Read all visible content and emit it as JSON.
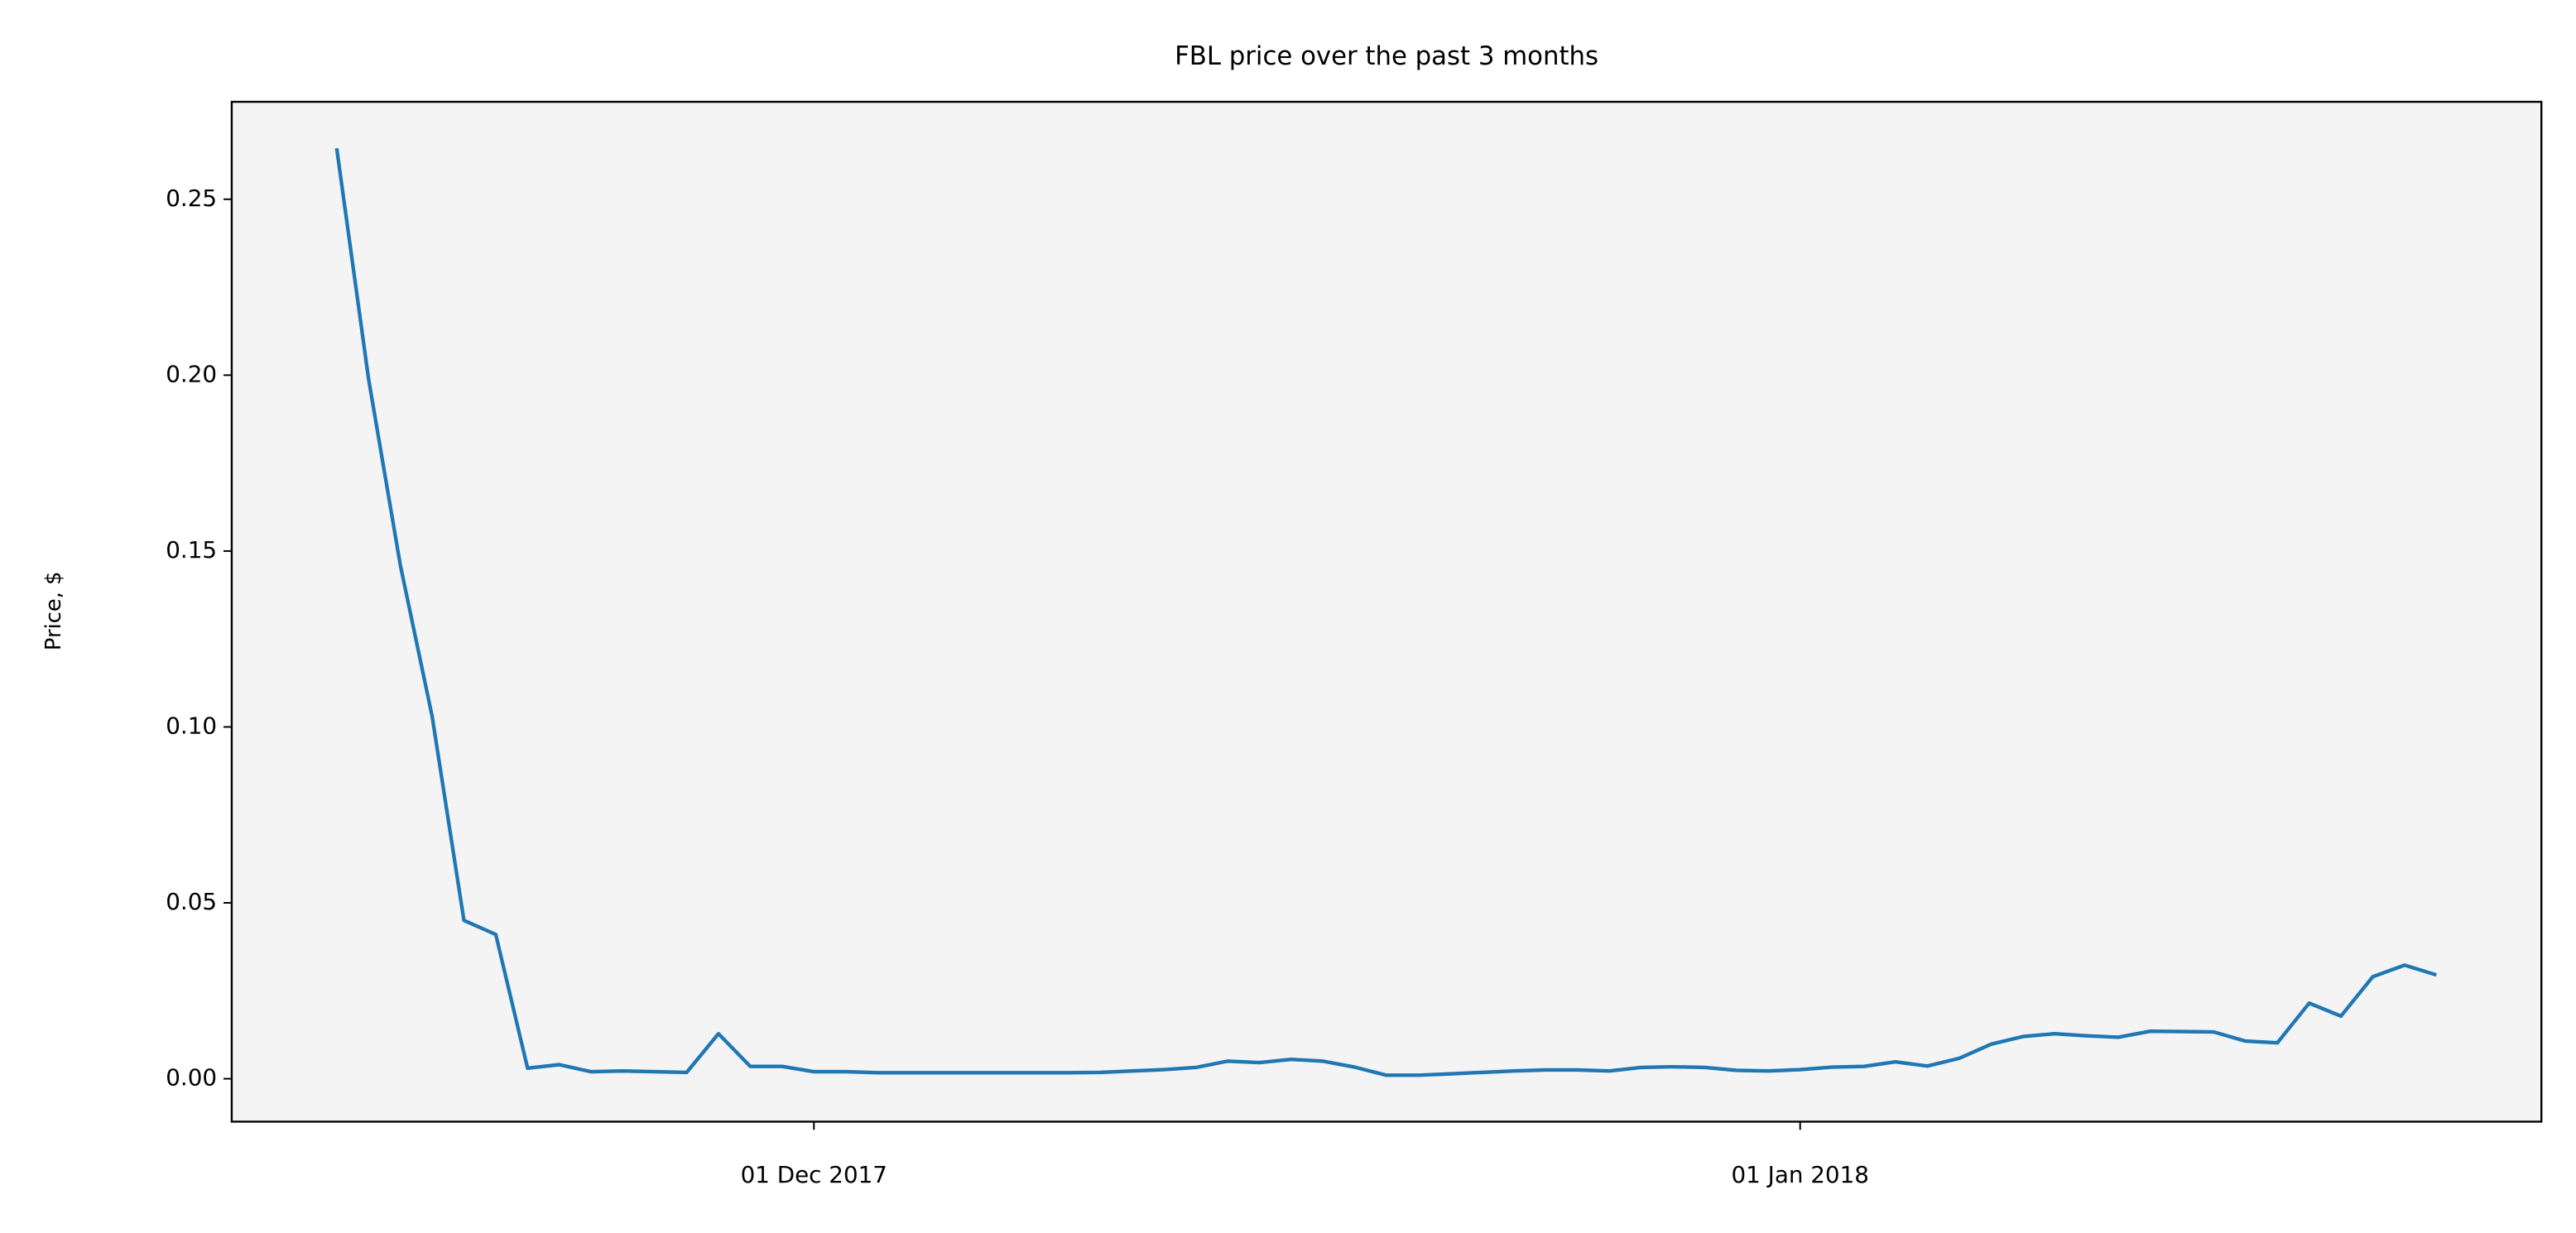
{
  "chart_data": {
    "type": "line",
    "title": "FBL price over the past 3 months",
    "ylabel": "Price, $",
    "x": [
      "2017-11-16",
      "2017-11-17",
      "2017-11-18",
      "2017-11-19",
      "2017-11-20",
      "2017-11-21",
      "2017-11-22",
      "2017-11-23",
      "2017-11-24",
      "2017-11-25",
      "2017-11-26",
      "2017-11-27",
      "2017-11-28",
      "2017-11-29",
      "2017-11-30",
      "2017-12-01",
      "2017-12-02",
      "2017-12-03",
      "2017-12-04",
      "2017-12-05",
      "2017-12-06",
      "2017-12-07",
      "2017-12-08",
      "2017-12-09",
      "2017-12-10",
      "2017-12-11",
      "2017-12-12",
      "2017-12-13",
      "2017-12-14",
      "2017-12-15",
      "2017-12-16",
      "2017-12-17",
      "2017-12-18",
      "2017-12-19",
      "2017-12-20",
      "2017-12-21",
      "2017-12-22",
      "2017-12-23",
      "2017-12-24",
      "2017-12-25",
      "2017-12-26",
      "2017-12-27",
      "2017-12-28",
      "2017-12-29",
      "2017-12-30",
      "2017-12-31",
      "2018-01-01",
      "2018-01-02",
      "2018-01-03",
      "2018-01-04",
      "2018-01-05",
      "2018-01-06",
      "2018-01-07",
      "2018-01-08",
      "2018-01-09",
      "2018-01-10",
      "2018-01-11",
      "2018-01-12",
      "2018-01-13",
      "2018-01-14",
      "2018-01-15",
      "2018-01-16",
      "2018-01-17",
      "2018-01-18",
      "2018-01-19",
      "2018-01-20",
      "2018-01-21"
    ],
    "values": [
      0.2645,
      0.199,
      0.146,
      0.103,
      0.045,
      0.041,
      0.003,
      0.004,
      0.002,
      0.0022,
      0.002,
      0.0018,
      0.0128,
      0.0035,
      0.0035,
      0.002,
      0.002,
      0.0017,
      0.0017,
      0.0017,
      0.0017,
      0.0017,
      0.0017,
      0.0017,
      0.0018,
      0.0022,
      0.0026,
      0.0032,
      0.005,
      0.0046,
      0.0055,
      0.005,
      0.0033,
      0.001,
      0.001,
      0.0014,
      0.0018,
      0.0022,
      0.0025,
      0.0025,
      0.0022,
      0.0032,
      0.0034,
      0.0032,
      0.0024,
      0.0022,
      0.0026,
      0.0033,
      0.0035,
      0.0048,
      0.0036,
      0.0058,
      0.0098,
      0.012,
      0.0128,
      0.0122,
      0.0118,
      0.0135,
      0.0134,
      0.0133,
      0.0107,
      0.0102,
      0.0215,
      0.0178,
      0.029,
      0.0323,
      0.0295
    ],
    "color": "#1f77b4",
    "xlim": [
      "2017-11-12T16:48:00Z",
      "2018-01-24T07:12:00Z"
    ],
    "xticks": [
      {
        "value": "2017-12-01",
        "label": "01 Dec 2017"
      },
      {
        "value": "2018-01-01",
        "label": "01 Jan 2018"
      }
    ],
    "ylim": [
      -0.0122,
      0.2777
    ],
    "yticks": [
      {
        "value": 0,
        "label": "0.00"
      },
      0.05,
      {
        "value": 0.1,
        "label": "0.10"
      },
      0.15,
      {
        "value": 0.2,
        "label": "0.20"
      },
      0.25
    ]
  }
}
